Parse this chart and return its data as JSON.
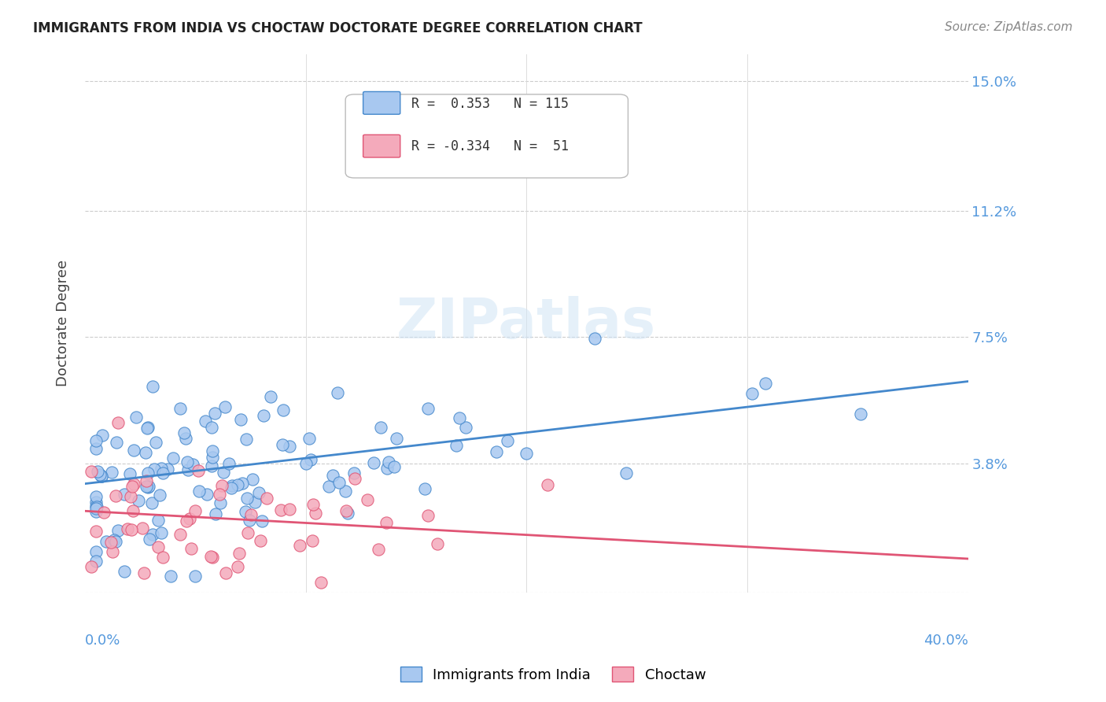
{
  "title": "IMMIGRANTS FROM INDIA VS CHOCTAW DOCTORATE DEGREE CORRELATION CHART",
  "source": "Source: ZipAtlas.com",
  "ylabel": "Doctorate Degree",
  "ytick_vals": [
    0.0,
    0.038,
    0.075,
    0.112,
    0.15
  ],
  "ytick_labels": [
    "",
    "3.8%",
    "7.5%",
    "11.2%",
    "15.0%"
  ],
  "xtick_vals": [
    0.0,
    0.1,
    0.2,
    0.3,
    0.4
  ],
  "xlim": [
    0.0,
    0.4
  ],
  "ylim": [
    0.0,
    0.158
  ],
  "color_india": "#A8C8F0",
  "color_india_line": "#4488CC",
  "color_choctaw": "#F4AABB",
  "color_choctaw_line": "#E05575",
  "color_axis_label": "#5599DD",
  "india_trend_x": [
    0.0,
    0.4
  ],
  "india_trend_y": [
    0.032,
    0.062
  ],
  "choctaw_trend_x": [
    0.0,
    0.4
  ],
  "choctaw_trend_y": [
    0.024,
    0.01
  ],
  "legend_r1_label": "R =  0.353   N = 115",
  "legend_r2_label": "R = -0.334   N =  51",
  "bottom_legend_india": "Immigrants from India",
  "bottom_legend_choctaw": "Choctaw"
}
